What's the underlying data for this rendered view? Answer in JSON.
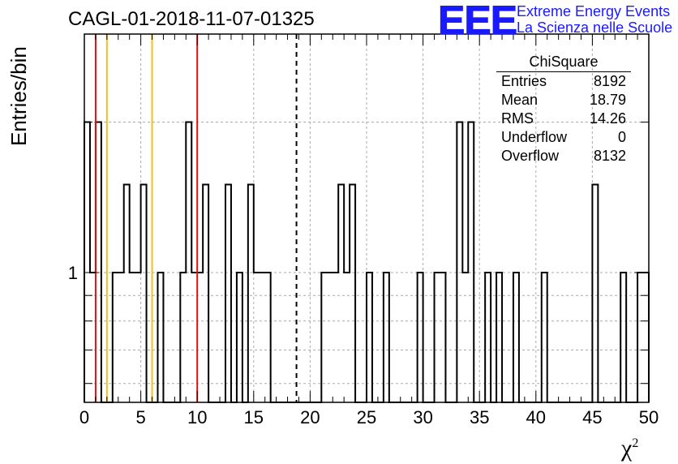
{
  "title": "CAGL-01-2018-11-07-01325",
  "logo": {
    "mark": "EEE",
    "line1": "Extreme Energy Events",
    "line2": "La Scienza nelle Scuole",
    "color": "#1a1aff"
  },
  "stats_box": {
    "title": "ChiSquare",
    "rows": [
      {
        "label": "Entries",
        "value": "8192"
      },
      {
        "label": "Mean",
        "value": "18.79"
      },
      {
        "label": "RMS",
        "value": "14.26"
      },
      {
        "label": "Underflow",
        "value": "0"
      },
      {
        "label": "Overflow",
        "value": "8132"
      }
    ]
  },
  "chart_data": {
    "type": "bar",
    "histogram": true,
    "xlabel": "χ",
    "xlabel_superscript": "2",
    "ylabel": "Entries/bin",
    "xlim": [
      0,
      50
    ],
    "ylim": [
      0.55,
      3.0
    ],
    "ylog": true,
    "grid": true,
    "bin_width": 0.5,
    "x_ticks": [
      "0",
      "5",
      "10",
      "15",
      "20",
      "25",
      "30",
      "35",
      "40",
      "45",
      "50"
    ],
    "y_ticks": [
      "1"
    ],
    "bins": [
      {
        "x": 0.0,
        "y": 2
      },
      {
        "x": 0.5,
        "y": 1
      },
      {
        "x": 1.0,
        "y": 2
      },
      {
        "x": 2.5,
        "y": 1
      },
      {
        "x": 3.0,
        "y": 1
      },
      {
        "x": 3.5,
        "y": 1.5
      },
      {
        "x": 4.0,
        "y": 1
      },
      {
        "x": 4.5,
        "y": 1
      },
      {
        "x": 5.0,
        "y": 1.5
      },
      {
        "x": 6.5,
        "y": 1
      },
      {
        "x": 8.5,
        "y": 1
      },
      {
        "x": 9.0,
        "y": 2
      },
      {
        "x": 9.5,
        "y": 1
      },
      {
        "x": 10.0,
        "y": 1
      },
      {
        "x": 10.5,
        "y": 1.5
      },
      {
        "x": 12.5,
        "y": 1.5
      },
      {
        "x": 13.5,
        "y": 1
      },
      {
        "x": 14.5,
        "y": 1.5
      },
      {
        "x": 15.0,
        "y": 1
      },
      {
        "x": 15.5,
        "y": 1
      },
      {
        "x": 16.0,
        "y": 1
      },
      {
        "x": 21.0,
        "y": 1
      },
      {
        "x": 21.5,
        "y": 1
      },
      {
        "x": 22.0,
        "y": 1
      },
      {
        "x": 22.5,
        "y": 1.5
      },
      {
        "x": 23.0,
        "y": 1
      },
      {
        "x": 23.5,
        "y": 1.5
      },
      {
        "x": 25.0,
        "y": 1
      },
      {
        "x": 26.5,
        "y": 1
      },
      {
        "x": 29.5,
        "y": 1
      },
      {
        "x": 31.0,
        "y": 1
      },
      {
        "x": 31.5,
        "y": 1
      },
      {
        "x": 33.0,
        "y": 2
      },
      {
        "x": 33.5,
        "y": 1
      },
      {
        "x": 34.0,
        "y": 2
      },
      {
        "x": 35.5,
        "y": 1
      },
      {
        "x": 36.5,
        "y": 1
      },
      {
        "x": 38.0,
        "y": 1
      },
      {
        "x": 40.5,
        "y": 1
      },
      {
        "x": 45.0,
        "y": 1.5
      },
      {
        "x": 47.5,
        "y": 1
      },
      {
        "x": 49.0,
        "y": 1
      },
      {
        "x": 49.5,
        "y": 1
      }
    ],
    "markers": [
      {
        "x": 1,
        "color": "#dd1111",
        "style": "solid"
      },
      {
        "x": 10,
        "color": "#dd1111",
        "style": "solid"
      },
      {
        "x": 2,
        "color": "#f0c020",
        "style": "solid"
      },
      {
        "x": 6,
        "color": "#f0c020",
        "style": "solid"
      },
      {
        "x": 18.79,
        "color": "#000000",
        "style": "dashed"
      }
    ]
  }
}
